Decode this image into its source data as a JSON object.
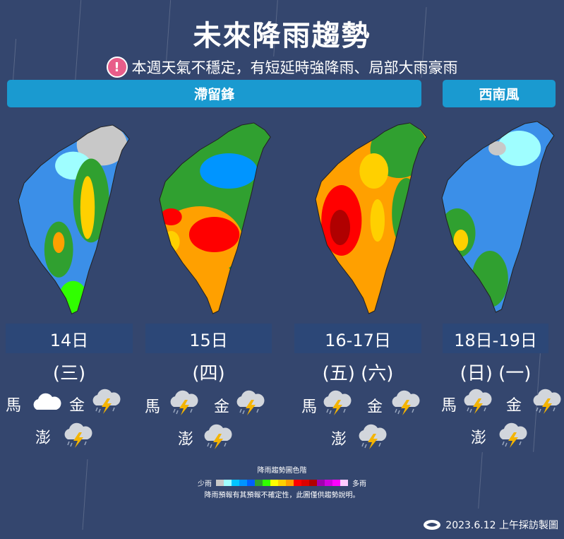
{
  "title": "未來降雨趨勢",
  "subtitle": "本週天氣不穩定，有短延時強降雨、局部大雨豪雨",
  "alert_icon": "exclamation-circle-icon",
  "banners": [
    "滯留鋒",
    "西南風"
  ],
  "days": [
    {
      "date": "14日",
      "dow": "(三)",
      "ma": "cloudy",
      "jin": "thunderstorm",
      "peng": "thunderstorm"
    },
    {
      "date": "15日",
      "dow": "(四)",
      "ma": "thunderstorm",
      "jin": "thunderstorm",
      "peng": "thunderstorm"
    },
    {
      "date": "16-17日",
      "dow": "(五) (六)",
      "ma": "thunderstorm",
      "jin": "thunderstorm",
      "peng": "thunderstorm"
    },
    {
      "date": "18日-19日",
      "dow": "(日) (一)",
      "ma": "thunderstorm",
      "jin": "thunderstorm",
      "peng": "thunderstorm"
    }
  ],
  "islands": {
    "ma": "馬",
    "jin": "金",
    "peng": "澎"
  },
  "legend": {
    "title": "降雨趨勢圖色階",
    "low": "少雨",
    "high": "多雨",
    "colors": [
      "#c8c8c8",
      "#9ffeff",
      "#00c5ff",
      "#0095ff",
      "#0060ff",
      "#30a030",
      "#30ff00",
      "#ffff00",
      "#ffd000",
      "#ffa000",
      "#ff0000",
      "#dd0000",
      "#b00000",
      "#a000b0",
      "#d000e0",
      "#ff00ff",
      "#ffccff"
    ],
    "note": "降雨預報有其預報不確定性，此圖僅供趨勢說明。"
  },
  "footer": "2023.6.12 上午採訪製圖",
  "colors": {
    "background": "#34466e",
    "banner": "#1a9ad0",
    "date_box": "#2c4777"
  }
}
